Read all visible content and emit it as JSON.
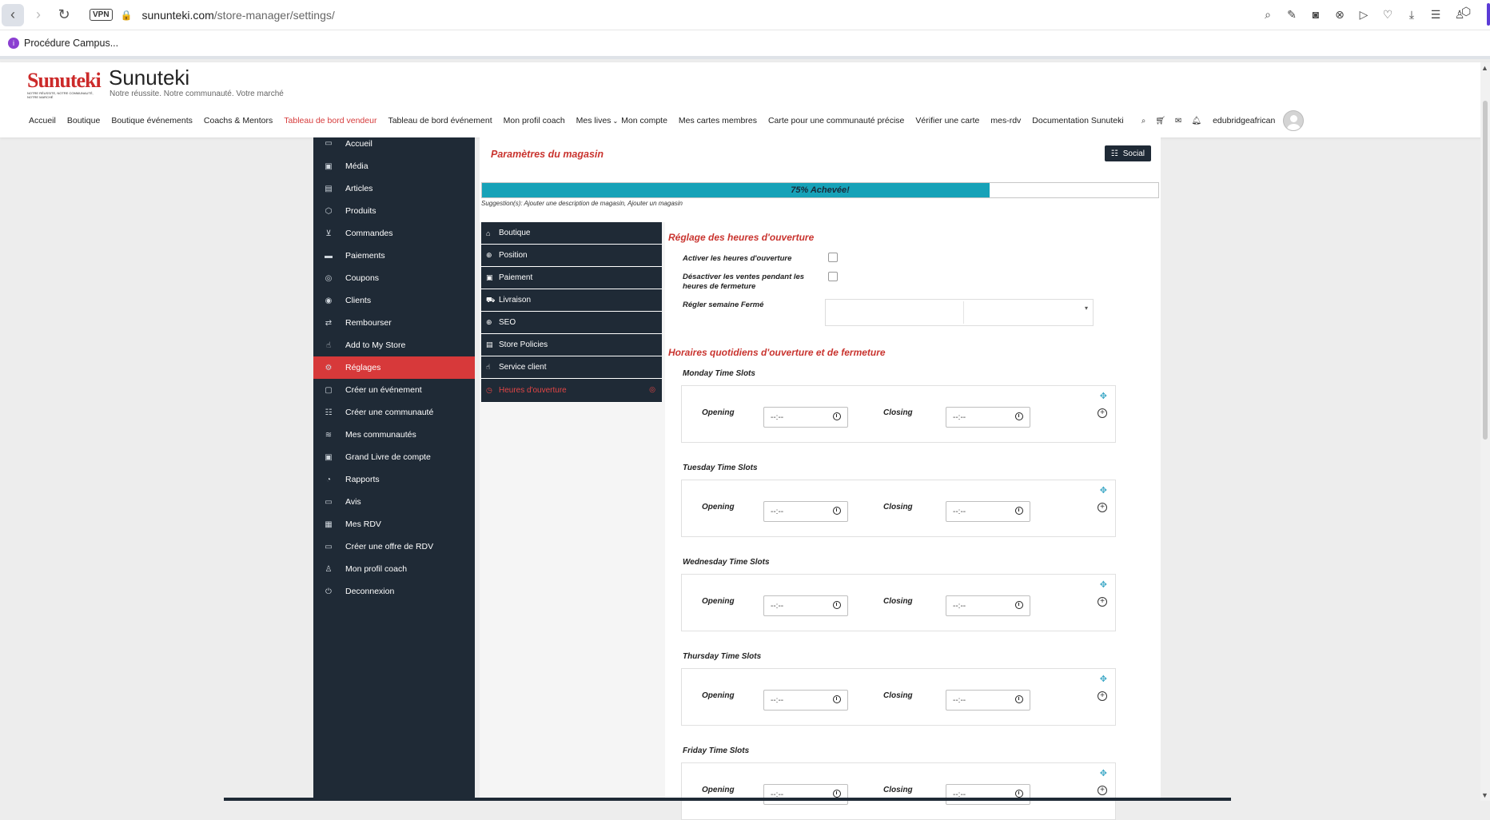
{
  "browser": {
    "url_host": "sununteki.com",
    "url_path": "/store-manager/settings/",
    "vpn_label": "VPN",
    "bookmark": "Procédure Campus...",
    "icons": [
      "search-icon",
      "edit-icon",
      "camera-icon",
      "close-circle-icon",
      "play-icon",
      "heart-icon",
      "download-icon",
      "menu-icon",
      "user-icon"
    ]
  },
  "site": {
    "logo_text": "Sunuteki",
    "logo_tagline": "NOTRE RÉUSSITE, NOTRE COMMUNAUTÉ, NOTRE MARCHÉ",
    "title": "Sunuteki",
    "tagline": "Notre réussite. Notre communauté. Votre marché",
    "nav": [
      {
        "label": "Accueil"
      },
      {
        "label": "Boutique"
      },
      {
        "label": "Boutique événements"
      },
      {
        "label": "Coachs & Mentors"
      },
      {
        "label": "Tableau de bord vendeur",
        "active": true
      },
      {
        "label": "Tableau de bord événement"
      },
      {
        "label": "Mon profil coach"
      },
      {
        "label": "Mes lives"
      },
      {
        "label": "Mon compte"
      },
      {
        "label": "Mes cartes membres"
      },
      {
        "label": "Carte pour une communauté précise"
      },
      {
        "label": "Vérifier une carte"
      },
      {
        "label": "mes-rdv"
      },
      {
        "label": "Documentation Sunuteki"
      }
    ],
    "username": "edubridgeafrican"
  },
  "sidebar": {
    "items": [
      {
        "label": "Accueil",
        "icon": "monitor-icon"
      },
      {
        "label": "Média",
        "icon": "image-icon"
      },
      {
        "label": "Articles",
        "icon": "file-icon"
      },
      {
        "label": "Produits",
        "icon": "cube-icon"
      },
      {
        "label": "Commandes",
        "icon": "cart-icon"
      },
      {
        "label": "Paiements",
        "icon": "credit-card-icon"
      },
      {
        "label": "Coupons",
        "icon": "gift-icon"
      },
      {
        "label": "Clients",
        "icon": "user-circle-icon"
      },
      {
        "label": "Rembourser",
        "icon": "retweet-icon"
      },
      {
        "label": "Add to My Store",
        "icon": "hand-icon"
      },
      {
        "label": "Réglages",
        "icon": "cogs-icon",
        "active": true
      },
      {
        "label": "Créer un événement",
        "icon": "calendar-icon"
      },
      {
        "label": "Créer une communauté",
        "icon": "users-icon"
      },
      {
        "label": "Mes communautés",
        "icon": "layers-icon"
      },
      {
        "label": "Grand Livre de compte",
        "icon": "money-icon"
      },
      {
        "label": "Rapports",
        "icon": "chart-icon"
      },
      {
        "label": "Avis",
        "icon": "comment-icon"
      },
      {
        "label": "Mes RDV",
        "icon": "calendar-check-icon"
      },
      {
        "label": "Créer une offre de RDV",
        "icon": "video-icon"
      },
      {
        "label": "Mon profil coach",
        "icon": "person-icon"
      },
      {
        "label": "Deconnexion",
        "icon": "power-icon"
      }
    ]
  },
  "panel": {
    "title": "Paramètres du magasin",
    "social_label": "Social",
    "progress_label": "75% Achevée!",
    "progress_fraction": 0.75,
    "suggestion": "Suggestion(s): Ajouter une description de magasin, Ajouter un magasin"
  },
  "tabs": [
    {
      "label": "Boutique",
      "icon": "store-icon"
    },
    {
      "label": "Position",
      "icon": "globe-icon"
    },
    {
      "label": "Paiement",
      "icon": "money-icon"
    },
    {
      "label": "Livraison",
      "icon": "truck-icon"
    },
    {
      "label": "SEO",
      "icon": "globe-icon"
    },
    {
      "label": "Store Policies",
      "icon": "policy-icon"
    },
    {
      "label": "Service client",
      "icon": "thumbs-up-icon"
    },
    {
      "label": "Heures d'ouverture",
      "icon": "clock-icon",
      "active": true
    }
  ],
  "hours": {
    "title": "Réglage des heures d'ouverture",
    "enable_label": "Activer les heures d'ouverture",
    "disable_label": "Désactiver les ventes pendant les heures de fermeture",
    "week_closed_label": "Régler semaine Fermé",
    "daily_title": "Horaires quotidiens d'ouverture et de fermeture",
    "opening_label": "Opening",
    "closing_label": "Closing",
    "time_placeholder": "--:--",
    "days": [
      "Monday Time Slots",
      "Tuesday Time Slots",
      "Wednesday Time Slots",
      "Thursday Time Slots",
      "Friday Time Slots"
    ]
  }
}
